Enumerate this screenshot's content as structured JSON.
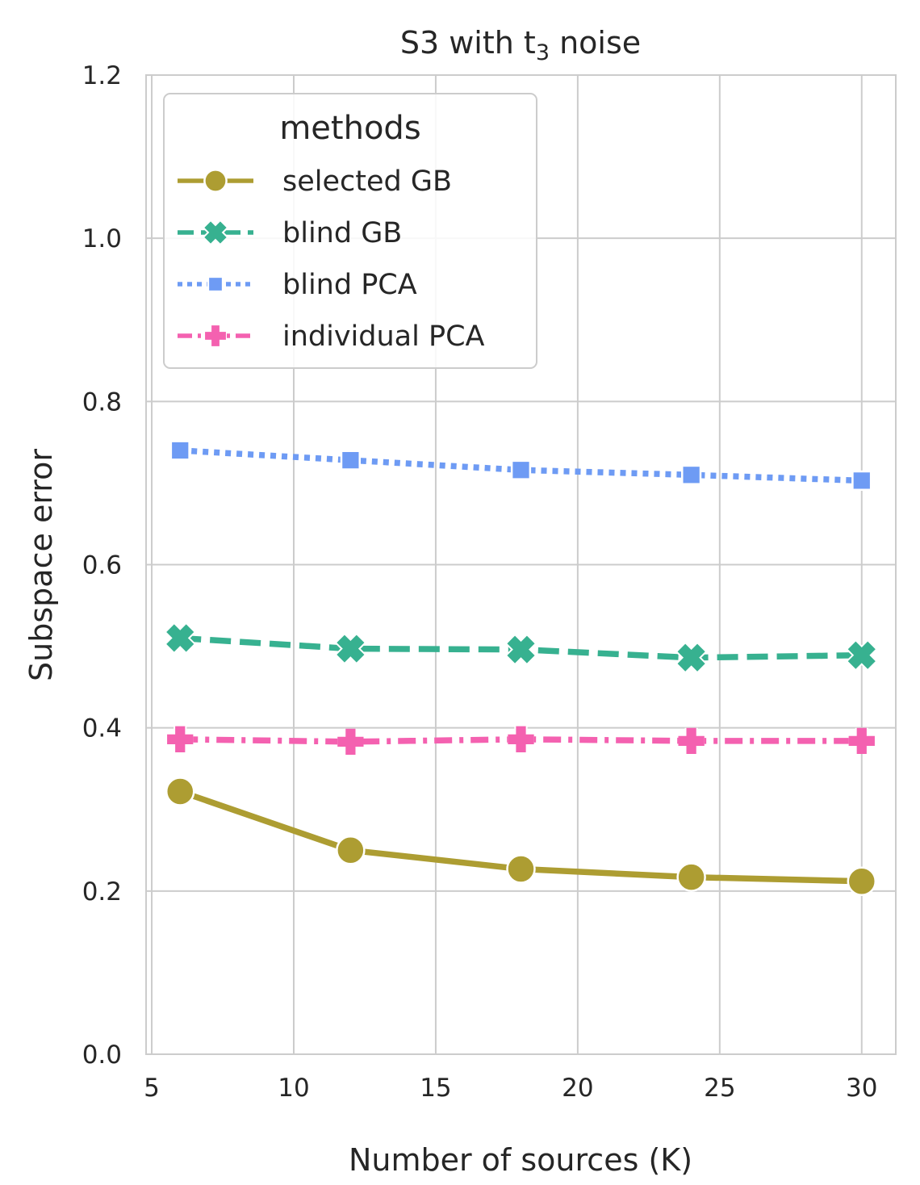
{
  "chart_data": {
    "type": "line",
    "title": "S3 with t",
    "title_subscript": "3",
    "title_suffix": " noise",
    "xlabel": "Number of sources (K)",
    "ylabel": "Subspace error",
    "xlim": [
      4.8,
      31.2
    ],
    "ylim": [
      0.0,
      1.2
    ],
    "xticks": [
      5,
      10,
      15,
      20,
      25,
      30
    ],
    "yticks": [
      0.0,
      0.2,
      0.4,
      0.6,
      0.8,
      1.0,
      1.2
    ],
    "ytick_labels": [
      "0.0",
      "0.2",
      "0.4",
      "0.6",
      "0.8",
      "1.0",
      "1.2"
    ],
    "grid": true,
    "legend_title": "methods",
    "legend_position": "top-left",
    "x": [
      6,
      12,
      18,
      24,
      30
    ],
    "series": [
      {
        "name": "selected GB",
        "values": [
          0.322,
          0.25,
          0.227,
          0.217,
          0.212
        ],
        "color": "#ad9d32",
        "line": "solid",
        "marker": "circle"
      },
      {
        "name": "blind GB",
        "values": [
          0.51,
          0.497,
          0.496,
          0.486,
          0.489
        ],
        "color": "#37b190",
        "line": "dashed",
        "marker": "x"
      },
      {
        "name": "blind PCA",
        "values": [
          0.74,
          0.728,
          0.716,
          0.71,
          0.703
        ],
        "color": "#6e9bf4",
        "line": "dotted",
        "marker": "square"
      },
      {
        "name": "individual PCA",
        "values": [
          0.386,
          0.383,
          0.386,
          0.384,
          0.384
        ],
        "color": "#f461b0",
        "line": "dashdot",
        "marker": "plus"
      }
    ]
  }
}
